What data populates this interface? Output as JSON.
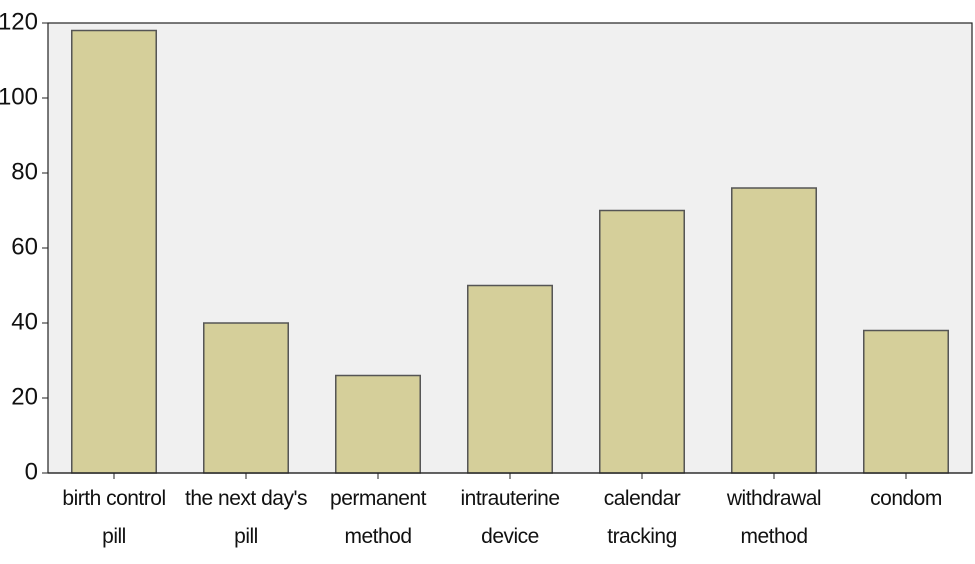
{
  "chart_data": {
    "type": "bar",
    "categories": [
      "birth control pill",
      "the next day's pill",
      "permanent method",
      "intrauterine device",
      "calendar tracking",
      "withdrawal method",
      "condom"
    ],
    "values": [
      118,
      40,
      26,
      50,
      70,
      76,
      38
    ],
    "color": "#d5cf9a",
    "ylim": [
      0,
      120
    ],
    "yticks": [
      0,
      20,
      40,
      60,
      80,
      100,
      120
    ],
    "grid": false
  }
}
